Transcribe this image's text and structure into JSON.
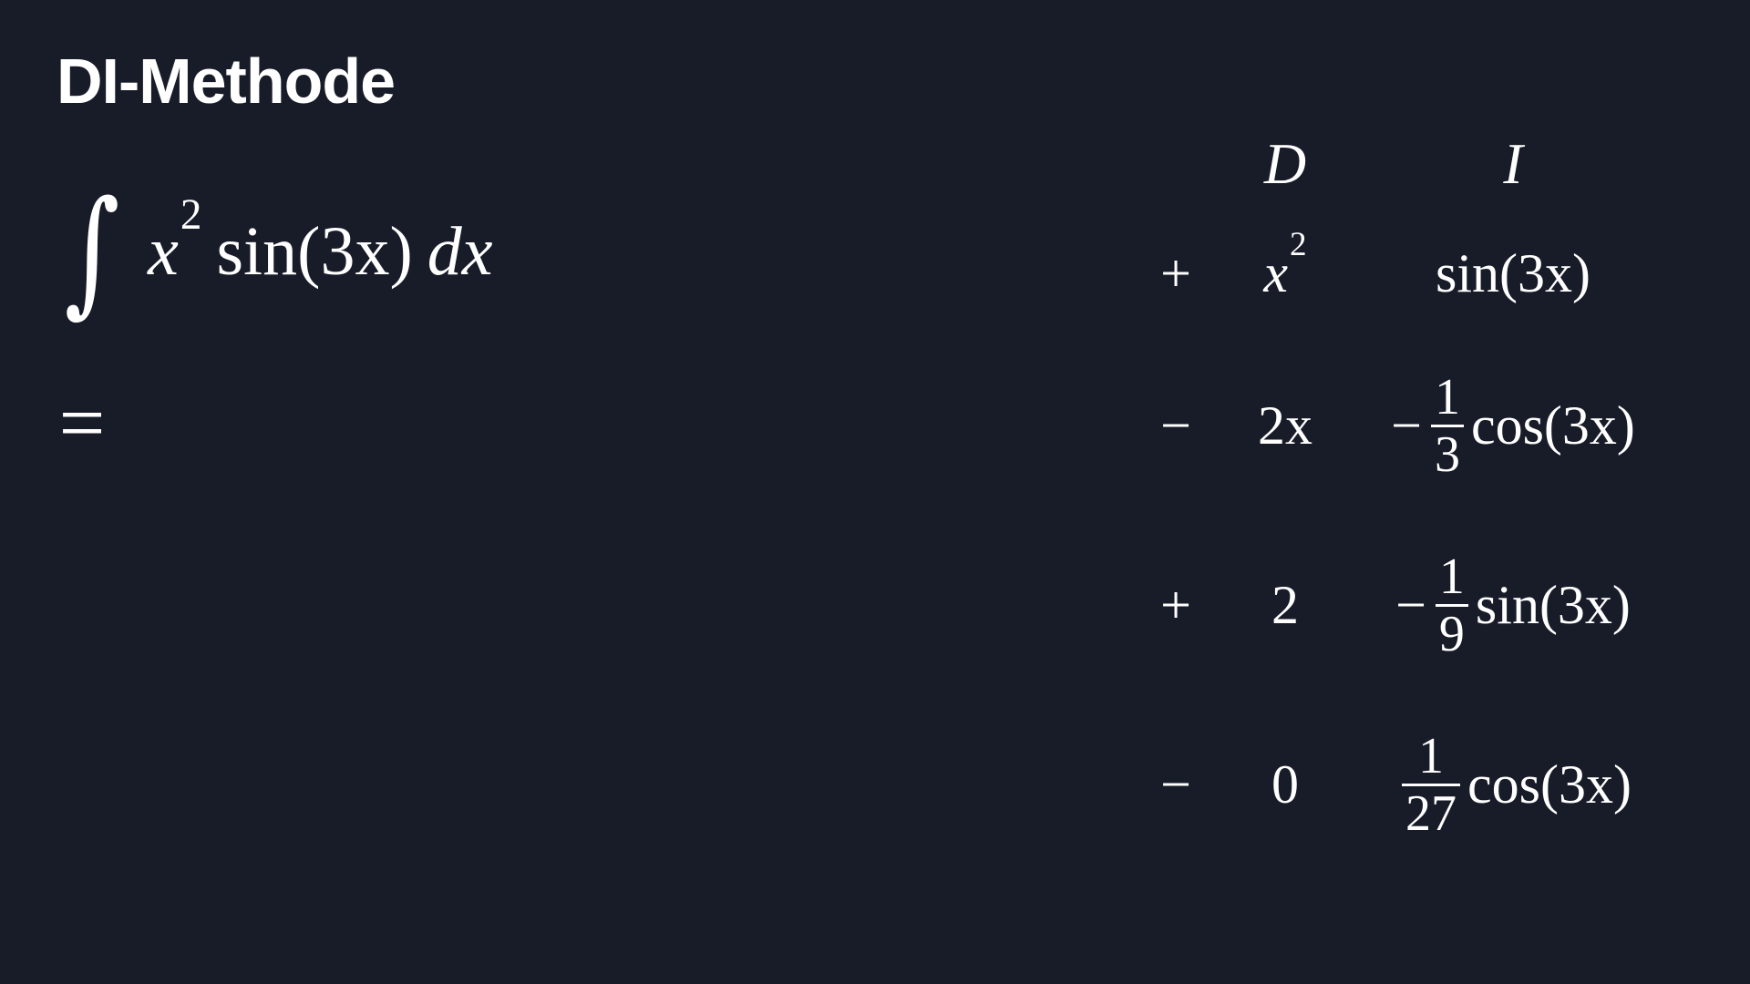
{
  "title": "DI-Methode",
  "integral": {
    "sign": "∫",
    "base": "x",
    "exponent": "2",
    "function": "sin(3x)",
    "differential": "dx"
  },
  "equals": "=",
  "table": {
    "headers": {
      "d": "D",
      "i": "I"
    },
    "rows": [
      {
        "sign": "+",
        "d_base": "x",
        "d_exponent": "2",
        "i_prefix": "",
        "i_numerator": "",
        "i_denominator": "",
        "i_function": "sin(3x)"
      },
      {
        "sign": "−",
        "d_value": "2x",
        "i_prefix": "−",
        "i_numerator": "1",
        "i_denominator": "3",
        "i_function": "cos(3x)"
      },
      {
        "sign": "+",
        "d_value": "2",
        "i_prefix": "−",
        "i_numerator": "1",
        "i_denominator": "9",
        "i_function": "sin(3x)"
      },
      {
        "sign": "−",
        "d_value": "0",
        "i_prefix": "",
        "i_numerator": "1",
        "i_denominator": "27",
        "i_function": "cos(3x)"
      }
    ]
  }
}
